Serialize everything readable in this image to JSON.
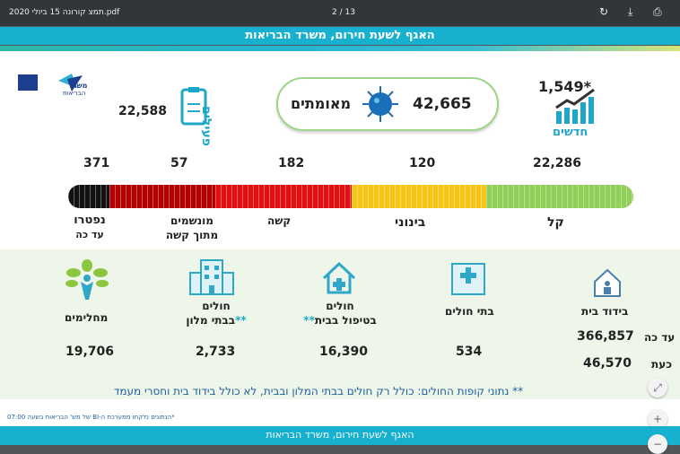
{
  "toolbar": {
    "filename": "תמצ קורונה 15 ביולי 2020.pdf",
    "page": "2 / 13",
    "icons": [
      "rotate-icon",
      "download-icon",
      "print-icon"
    ]
  },
  "banner": "האגף לשעת חירום, משרד הבריאות",
  "top": {
    "new_cases": "1,549*",
    "new_label": "חדשים",
    "confirmed_value": "42,665",
    "confirmed_label": "מאומתים",
    "active_value": "22,588",
    "active_label": "פעילים",
    "logo": "משרד הבריאות לחיים בריאים יותר"
  },
  "severity": {
    "segments": [
      {
        "label": "קל",
        "value": "22,286",
        "color": "#8fcf5a"
      },
      {
        "label": "בינוני",
        "value": "120",
        "color": "#f5c518"
      },
      {
        "label": "קשה",
        "value": "182",
        "color": "#e01010"
      },
      {
        "label": "מונשמים",
        "sub": "מתוך קשה",
        "value": "57",
        "color": "#b00000"
      },
      {
        "label": "נפטרו",
        "sub": "עד כה",
        "value": "371",
        "color": "#111111"
      }
    ]
  },
  "stats": {
    "home_isolation": {
      "label": "בידוד בית",
      "so_far_label": "עד כה",
      "so_far": "366,857",
      "now_label": "כעת",
      "now": "46,570"
    },
    "hospitals": {
      "label": "בתי חולים",
      "value": "534"
    },
    "home_care": {
      "label": "חולים",
      "label2": "בטיפול בבית",
      "stars": "**",
      "value": "16,390"
    },
    "hotels": {
      "label": "חולים",
      "label2": "בבתי מלון",
      "stars": "**",
      "value": "2,733"
    },
    "recovered": {
      "label": "מחלימים",
      "value": "19,706"
    }
  },
  "footnote": "** נתוני קופות החולים: כולל רק חולים בבתי המלון ובבית, לא כולל בידוד בית וחסרי מעמד ביטוחי",
  "source_note": "*הנתונים נלקחו ממערכת ה-BI של מש' הבריאות בשעה 07:00",
  "banner_bottom": "האגף לשעת חירום, משרד הבריאות",
  "controls": {
    "fit": "⤢",
    "zoom_in": "+",
    "zoom_out": "−"
  }
}
